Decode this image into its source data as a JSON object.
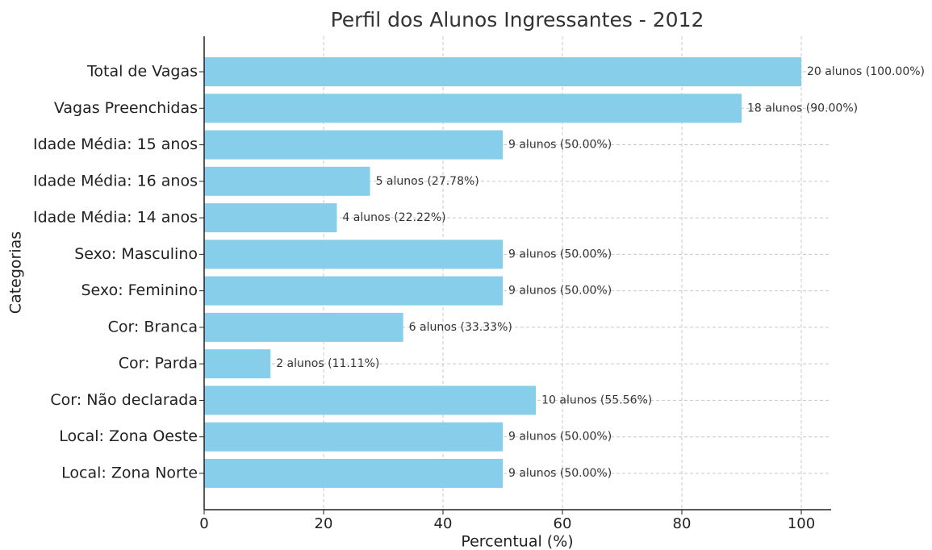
{
  "chart_data": {
    "type": "bar",
    "orientation": "horizontal",
    "title": "Perfil dos Alunos Ingressantes - 2012",
    "x_label": "Percentual (%)",
    "y_label": "Categorias",
    "categories": [
      "Total de Vagas",
      "Vagas Preenchidas",
      "Idade Média: 15 anos",
      "Idade Média: 16 anos",
      "Idade Média: 14 anos",
      "Sexo: Masculino",
      "Sexo: Feminino",
      "Cor: Branca",
      "Cor: Parda",
      "Cor: Não declarada",
      "Local: Zona Oeste",
      "Local: Zona Norte"
    ],
    "values": [
      100,
      90,
      50,
      27.78,
      22.22,
      50,
      50,
      33.33,
      11.11,
      55.56,
      50,
      50
    ],
    "value_labels": [
      "20 alunos (100.00%)",
      "18 alunos (90.00%)",
      "9 alunos (50.00%)",
      "5 alunos (27.78%)",
      "4 alunos (22.22%)",
      "9 alunos (50.00%)",
      "9 alunos (50.00%)",
      "6 alunos (33.33%)",
      "2 alunos (11.11%)",
      "10 alunos (55.56%)",
      "9 alunos (50.00%)",
      "9 alunos (50.00%)"
    ],
    "color": "#87ceeb",
    "xlim": [
      0,
      105
    ],
    "xticks": [
      0,
      20,
      40,
      60,
      80,
      100
    ],
    "grid": true
  }
}
